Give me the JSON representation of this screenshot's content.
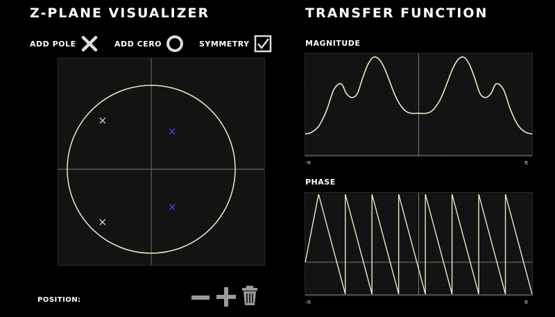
{
  "zplane": {
    "title": "Z-PLANE VISUALIZER",
    "add_pole_label": "ADD POLE",
    "add_zero_label": "ADD CERO",
    "symmetry_label": "SYMMETRY",
    "symmetry_checked": true,
    "position_label": "POSITION:",
    "poles": [
      {
        "re": -0.58,
        "im": 0.58,
        "selected": false
      },
      {
        "re": 0.25,
        "im": 0.45,
        "selected": true
      },
      {
        "re": 0.25,
        "im": -0.45,
        "selected": true
      },
      {
        "re": -0.58,
        "im": -0.63,
        "selected": false
      }
    ],
    "colors": {
      "unit_circle": "#f0ecc8",
      "pole": "#d8d8d8",
      "pole_selected": "#4a4af0",
      "axis": "#777777"
    }
  },
  "transfer": {
    "title": "TRANSFER FUNCTION",
    "magnitude_label": "MAGNITUDE",
    "phase_label": "PHASE",
    "x_min_label": "-π",
    "x_max_label": "π"
  },
  "chart_data": [
    {
      "type": "line",
      "name": "magnitude",
      "xlabel": "",
      "ylabel": "",
      "xlim": [
        -3.1416,
        3.1416
      ],
      "ylim": [
        0,
        1
      ],
      "x": [
        -3.1416,
        -2.95,
        -2.75,
        -2.55,
        -2.35,
        -2.15,
        -2.0,
        -1.85,
        -1.7,
        -1.55,
        -1.4,
        -1.25,
        -1.1,
        -0.95,
        -0.8,
        -0.65,
        -0.5,
        -0.35,
        -0.2,
        0,
        0.2,
        0.35,
        0.5,
        0.65,
        0.8,
        0.95,
        1.1,
        1.25,
        1.4,
        1.55,
        1.7,
        1.85,
        2.0,
        2.15,
        2.35,
        2.55,
        2.75,
        2.95,
        3.1416
      ],
      "y": [
        0.21,
        0.23,
        0.3,
        0.45,
        0.66,
        0.72,
        0.62,
        0.58,
        0.62,
        0.78,
        0.92,
        0.99,
        0.97,
        0.88,
        0.74,
        0.6,
        0.5,
        0.44,
        0.42,
        0.42,
        0.42,
        0.44,
        0.5,
        0.6,
        0.74,
        0.88,
        0.97,
        0.99,
        0.92,
        0.78,
        0.62,
        0.58,
        0.62,
        0.72,
        0.66,
        0.45,
        0.3,
        0.23,
        0.21
      ]
    },
    {
      "type": "line",
      "name": "phase",
      "xlabel": "",
      "ylabel": "",
      "xlim": [
        -3.1416,
        3.1416
      ],
      "ylim": [
        -3.1416,
        3.1416
      ],
      "sawtooth_periods": 8.5,
      "note_shape": "sawtooth"
    }
  ]
}
